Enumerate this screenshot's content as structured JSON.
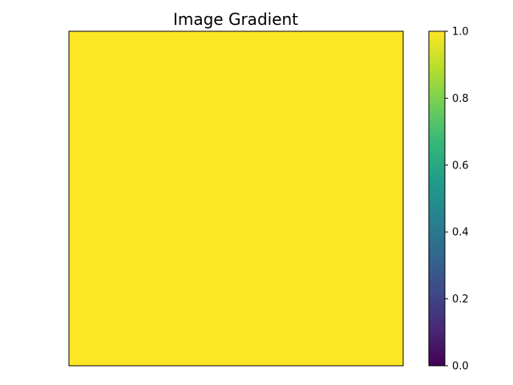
{
  "chart_data": {
    "type": "heatmap",
    "title": "Image Gradient",
    "xlabel": "",
    "ylabel": "",
    "axes_visible": false,
    "grid": false,
    "values": [
      [
        1.0
      ]
    ],
    "colormap": "viridis",
    "colormap_stops": [
      "#440154",
      "#482878",
      "#3e4989",
      "#31688e",
      "#26828e",
      "#1f9e89",
      "#35b779",
      "#6ece58",
      "#b5de2b",
      "#fde725"
    ],
    "colorbar": {
      "range": [
        0.0,
        1.0
      ],
      "ticks": [
        0.0,
        0.2,
        0.4,
        0.6,
        0.8,
        1.0
      ],
      "tick_labels": [
        "0.0",
        "0.2",
        "0.4",
        "0.6",
        "0.8",
        "1.0"
      ],
      "placement": "right"
    }
  }
}
